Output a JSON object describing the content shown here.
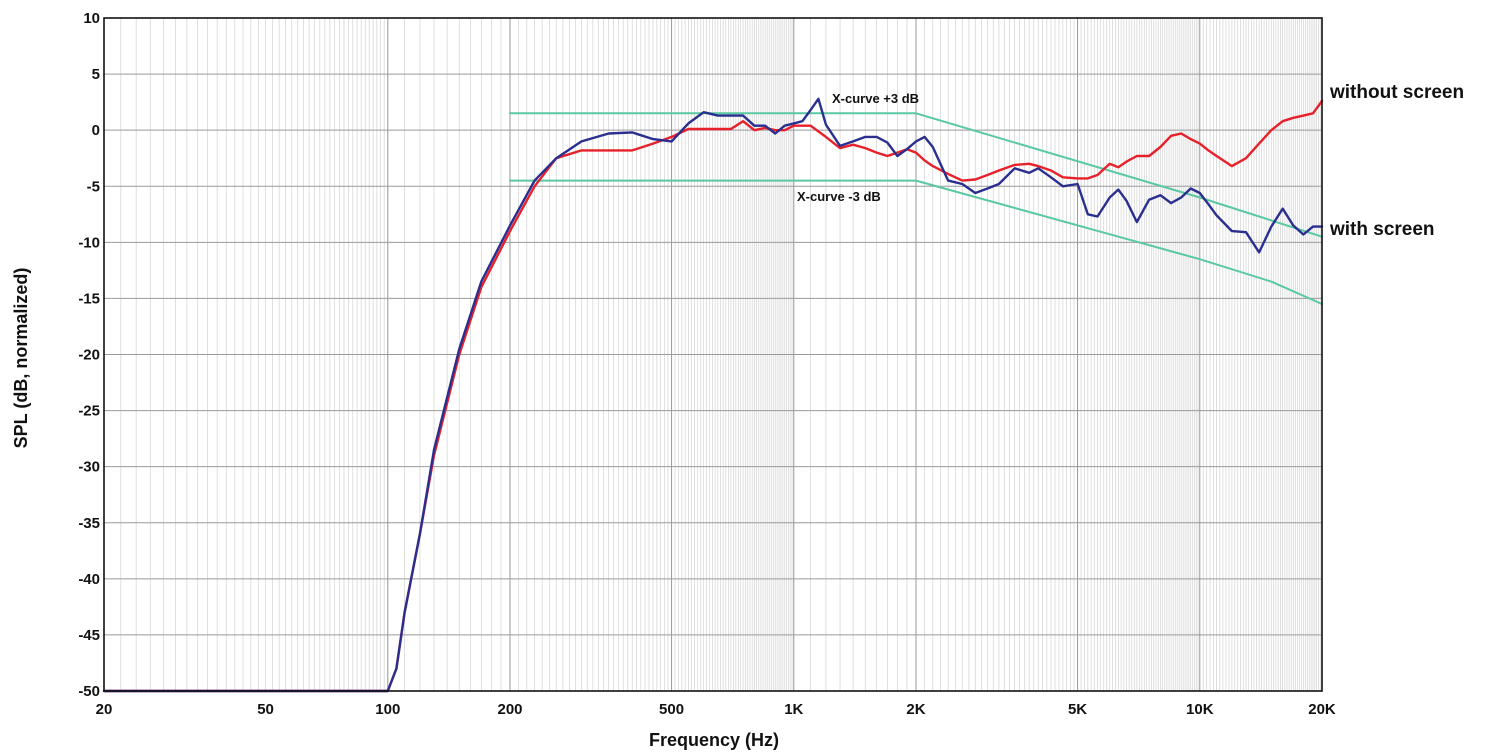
{
  "chart_data": {
    "type": "line",
    "xlabel": "Frequency (Hz)",
    "ylabel": "SPL (dB, normalized)",
    "x_scale": "log",
    "xlim": [
      20,
      20000
    ],
    "ylim": [
      -50,
      10
    ],
    "grid": true,
    "x_ticks": [
      {
        "value": 20,
        "label": "20"
      },
      {
        "value": 50,
        "label": "50"
      },
      {
        "value": 100,
        "label": "100"
      },
      {
        "value": 200,
        "label": "200"
      },
      {
        "value": 500,
        "label": "500"
      },
      {
        "value": 1000,
        "label": "1K"
      },
      {
        "value": 2000,
        "label": "2K"
      },
      {
        "value": 5000,
        "label": "5K"
      },
      {
        "value": 10000,
        "label": "10K"
      },
      {
        "value": 20000,
        "label": "20K"
      }
    ],
    "y_ticks": [
      10,
      5,
      0,
      -5,
      -10,
      -15,
      -20,
      -25,
      -30,
      -35,
      -40,
      -45,
      -50
    ],
    "series": [
      {
        "name": "without screen",
        "color": "#e8202a",
        "x": [
          20,
          100,
          105,
          110,
          120,
          130,
          150,
          170,
          200,
          230,
          260,
          300,
          350,
          400,
          450,
          500,
          550,
          600,
          650,
          700,
          750,
          800,
          850,
          900,
          950,
          1000,
          1100,
          1200,
          1300,
          1400,
          1500,
          1600,
          1700,
          1800,
          1900,
          2000,
          2100,
          2200,
          2400,
          2600,
          2800,
          3000,
          3200,
          3500,
          3800,
          4000,
          4300,
          4600,
          5000,
          5300,
          5600,
          6000,
          6300,
          6600,
          7000,
          7500,
          8000,
          8500,
          9000,
          9500,
          10000,
          10500,
          11000,
          12000,
          13000,
          14000,
          15000,
          16000,
          17000,
          18000,
          19000,
          20000
        ],
        "values": [
          -50,
          -50,
          -48,
          -43,
          -36,
          -29,
          -20,
          -14,
          -9,
          -5,
          -2.5,
          -1.8,
          -1.8,
          -1.8,
          -1.2,
          -0.6,
          0.1,
          0.1,
          0.1,
          0.1,
          0.8,
          0.0,
          0.2,
          0.0,
          0.0,
          0.4,
          0.4,
          -0.6,
          -1.6,
          -1.3,
          -1.6,
          -2.0,
          -2.3,
          -2.0,
          -1.7,
          -2.0,
          -2.7,
          -3.2,
          -3.9,
          -4.5,
          -4.4,
          -4.0,
          -3.6,
          -3.1,
          -3.0,
          -3.2,
          -3.6,
          -4.2,
          -4.3,
          -4.3,
          -4.0,
          -3.0,
          -3.3,
          -2.8,
          -2.3,
          -2.3,
          -1.5,
          -0.5,
          -0.3,
          -0.8,
          -1.2,
          -1.8,
          -2.3,
          -3.2,
          -2.5,
          -1.2,
          0.0,
          0.8,
          1.1,
          1.3,
          1.5,
          2.6
        ]
      },
      {
        "name": "with screen",
        "color": "#2a2f8f",
        "x": [
          20,
          100,
          105,
          110,
          120,
          130,
          150,
          170,
          200,
          230,
          260,
          300,
          350,
          400,
          450,
          500,
          550,
          600,
          650,
          700,
          750,
          800,
          850,
          900,
          950,
          1000,
          1050,
          1100,
          1150,
          1200,
          1300,
          1400,
          1500,
          1600,
          1700,
          1800,
          1900,
          2000,
          2100,
          2200,
          2400,
          2600,
          2800,
          3000,
          3200,
          3500,
          3800,
          4000,
          4300,
          4600,
          5000,
          5300,
          5600,
          6000,
          6300,
          6600,
          7000,
          7500,
          8000,
          8500,
          9000,
          9500,
          10000,
          10500,
          11000,
          12000,
          13000,
          14000,
          15000,
          16000,
          17000,
          18000,
          19000,
          20000
        ],
        "values": [
          -50,
          -50,
          -48,
          -43,
          -36,
          -28.5,
          -19.5,
          -13.5,
          -8.5,
          -4.5,
          -2.5,
          -1.0,
          -0.3,
          -0.2,
          -0.8,
          -1.0,
          0.6,
          1.6,
          1.3,
          1.3,
          1.3,
          0.4,
          0.4,
          -0.3,
          0.4,
          0.6,
          0.8,
          1.8,
          2.8,
          0.5,
          -1.4,
          -1.0,
          -0.6,
          -0.6,
          -1.1,
          -2.3,
          -1.7,
          -1.0,
          -0.6,
          -1.5,
          -4.5,
          -4.8,
          -5.6,
          -5.2,
          -4.8,
          -3.4,
          -3.8,
          -3.4,
          -4.2,
          -5.0,
          -4.8,
          -7.5,
          -7.7,
          -6.0,
          -5.3,
          -6.3,
          -8.2,
          -6.2,
          -5.8,
          -6.5,
          -6.0,
          -5.2,
          -5.6,
          -6.6,
          -7.6,
          -9.0,
          -9.1,
          -10.9,
          -8.6,
          -7.0,
          -8.5,
          -9.3,
          -8.6,
          -8.6
        ]
      },
      {
        "name": "X-curve +3 dB",
        "color": "#5ac8a0",
        "x": [
          200,
          2000,
          10000,
          20000
        ],
        "values": [
          1.5,
          1.5,
          -6.0,
          -9.5
        ]
      },
      {
        "name": "X-curve -3 dB",
        "color": "#5ac8a0",
        "x": [
          200,
          2000,
          10000,
          15000,
          20000
        ],
        "values": [
          -4.5,
          -4.5,
          -11.5,
          -13.5,
          -15.5
        ]
      }
    ],
    "labels": {
      "without_screen": "without screen",
      "with_screen": "with screen",
      "xcurve_plus": "X-curve +3 dB",
      "xcurve_minus": "X-curve -3 dB"
    }
  }
}
